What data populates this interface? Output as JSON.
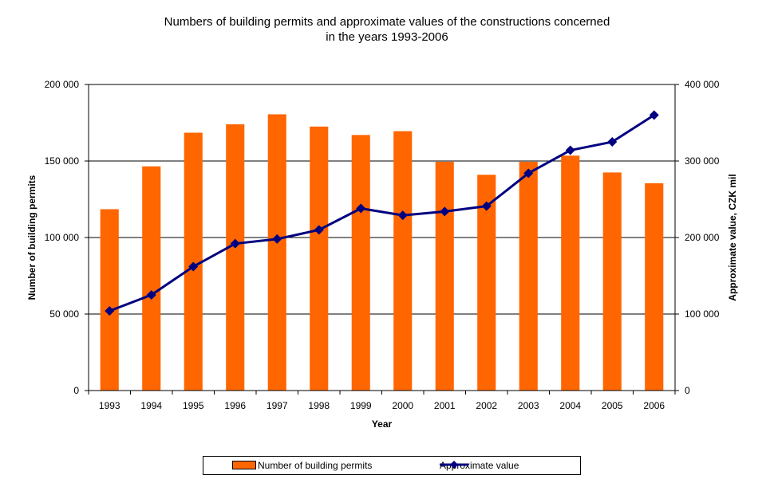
{
  "title_lines": [
    "Numbers of building permits and approximate values of the constructions concerned",
    "in  the years 1993-2006"
  ],
  "legend": {
    "bar_label": "Number of building permits",
    "line_label": "Approximate value"
  },
  "colors": {
    "bar": "#FF6600",
    "line": "#000080",
    "grid": "#000000"
  },
  "chart_data": {
    "type": "bar",
    "title": "Numbers of building permits and approximate values of the constructions concerned in  the years 1993-2006",
    "xlabel": "Year",
    "ylabel": "Number of building permits",
    "y2label": "Approximate value, CZK mil",
    "categories": [
      "1993",
      "1994",
      "1995",
      "1996",
      "1997",
      "1998",
      "1999",
      "2000",
      "2001",
      "2002",
      "2003",
      "2004",
      "2005",
      "2006"
    ],
    "ylim": [
      0,
      200000
    ],
    "y2lim": [
      0,
      400000
    ],
    "y_ticks": [
      0,
      50000,
      100000,
      150000,
      200000
    ],
    "y_tick_labels": [
      "0",
      "50 000",
      "100 000",
      "150 000",
      "200 000"
    ],
    "y2_ticks": [
      0,
      100000,
      200000,
      300000,
      400000
    ],
    "y2_tick_labels": [
      "0",
      "100 000",
      "200 000",
      "300 000",
      "400 000"
    ],
    "grid": true,
    "legend_position": "bottom",
    "series": [
      {
        "name": "Number of building permits",
        "type": "bar",
        "axis": "left",
        "values": [
          118500,
          146500,
          168500,
          174000,
          180500,
          172500,
          167000,
          169500,
          149500,
          141000,
          149500,
          153500,
          142500,
          135500
        ]
      },
      {
        "name": "Approximate value",
        "type": "line",
        "axis": "right",
        "values": [
          104000,
          125000,
          162000,
          192000,
          198000,
          210000,
          238000,
          229000,
          234000,
          241000,
          284000,
          314000,
          325000,
          360000
        ]
      }
    ]
  }
}
